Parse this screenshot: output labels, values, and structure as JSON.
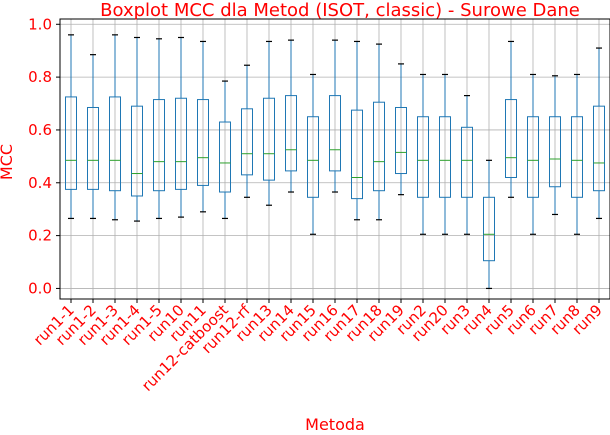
{
  "colors": {
    "text": "#ff0000",
    "box": "#1f77b4",
    "median": "#2ca02c",
    "whisker": "#1f77b4",
    "cap": "#000000",
    "grid": "#b0b0b0",
    "axes": "#000000"
  },
  "chart_data": {
    "type": "boxplot",
    "title": "Boxplot MCC dla Metod (ISOT, classic) - Surowe Dane",
    "xlabel": "Metoda",
    "ylabel": "MCC",
    "ylim": [
      -0.04,
      1.02
    ],
    "yticks": [
      "0.0",
      "0.2",
      "0.4",
      "0.6",
      "0.8",
      "1.0"
    ],
    "grid": true,
    "boxes": [
      {
        "name": "run1-1",
        "whislo": 0.265,
        "q1": 0.375,
        "med": 0.485,
        "q3": 0.725,
        "whishi": 0.96
      },
      {
        "name": "run1-2",
        "whislo": 0.265,
        "q1": 0.375,
        "med": 0.485,
        "q3": 0.685,
        "whishi": 0.885
      },
      {
        "name": "run1-3",
        "whislo": 0.26,
        "q1": 0.37,
        "med": 0.485,
        "q3": 0.725,
        "whishi": 0.96
      },
      {
        "name": "run1-4",
        "whislo": 0.255,
        "q1": 0.35,
        "med": 0.435,
        "q3": 0.69,
        "whishi": 0.95
      },
      {
        "name": "run1-5",
        "whislo": 0.265,
        "q1": 0.37,
        "med": 0.48,
        "q3": 0.715,
        "whishi": 0.945
      },
      {
        "name": "run10",
        "whislo": 0.27,
        "q1": 0.375,
        "med": 0.48,
        "q3": 0.72,
        "whishi": 0.95
      },
      {
        "name": "run11",
        "whislo": 0.29,
        "q1": 0.39,
        "med": 0.495,
        "q3": 0.715,
        "whishi": 0.935
      },
      {
        "name": "run12-catboost",
        "whislo": 0.265,
        "q1": 0.365,
        "med": 0.475,
        "q3": 0.63,
        "whishi": 0.785
      },
      {
        "name": "run12-rf",
        "whislo": 0.345,
        "q1": 0.43,
        "med": 0.51,
        "q3": 0.68,
        "whishi": 0.845
      },
      {
        "name": "run13",
        "whislo": 0.315,
        "q1": 0.41,
        "med": 0.51,
        "q3": 0.72,
        "whishi": 0.935
      },
      {
        "name": "run14",
        "whislo": 0.365,
        "q1": 0.445,
        "med": 0.525,
        "q3": 0.73,
        "whishi": 0.94
      },
      {
        "name": "run15",
        "whislo": 0.205,
        "q1": 0.345,
        "med": 0.485,
        "q3": 0.65,
        "whishi": 0.81
      },
      {
        "name": "run16",
        "whislo": 0.365,
        "q1": 0.445,
        "med": 0.525,
        "q3": 0.73,
        "whishi": 0.94
      },
      {
        "name": "run17",
        "whislo": 0.26,
        "q1": 0.34,
        "med": 0.42,
        "q3": 0.675,
        "whishi": 0.935
      },
      {
        "name": "run18",
        "whislo": 0.26,
        "q1": 0.37,
        "med": 0.48,
        "q3": 0.705,
        "whishi": 0.925
      },
      {
        "name": "run19",
        "whislo": 0.355,
        "q1": 0.435,
        "med": 0.515,
        "q3": 0.685,
        "whishi": 0.85
      },
      {
        "name": "run2",
        "whislo": 0.205,
        "q1": 0.345,
        "med": 0.485,
        "q3": 0.65,
        "whishi": 0.81
      },
      {
        "name": "run20",
        "whislo": 0.205,
        "q1": 0.345,
        "med": 0.485,
        "q3": 0.65,
        "whishi": 0.81
      },
      {
        "name": "run3",
        "whislo": 0.205,
        "q1": 0.345,
        "med": 0.485,
        "q3": 0.61,
        "whishi": 0.73
      },
      {
        "name": "run4",
        "whislo": 0.0,
        "q1": 0.105,
        "med": 0.205,
        "q3": 0.345,
        "whishi": 0.485
      },
      {
        "name": "run5",
        "whislo": 0.345,
        "q1": 0.42,
        "med": 0.495,
        "q3": 0.715,
        "whishi": 0.935
      },
      {
        "name": "run6",
        "whislo": 0.205,
        "q1": 0.345,
        "med": 0.485,
        "q3": 0.65,
        "whishi": 0.81
      },
      {
        "name": "run7",
        "whislo": 0.28,
        "q1": 0.385,
        "med": 0.49,
        "q3": 0.65,
        "whishi": 0.805
      },
      {
        "name": "run8",
        "whislo": 0.205,
        "q1": 0.345,
        "med": 0.485,
        "q3": 0.65,
        "whishi": 0.81
      },
      {
        "name": "run9",
        "whislo": 0.265,
        "q1": 0.37,
        "med": 0.475,
        "q3": 0.69,
        "whishi": 0.91
      }
    ]
  }
}
